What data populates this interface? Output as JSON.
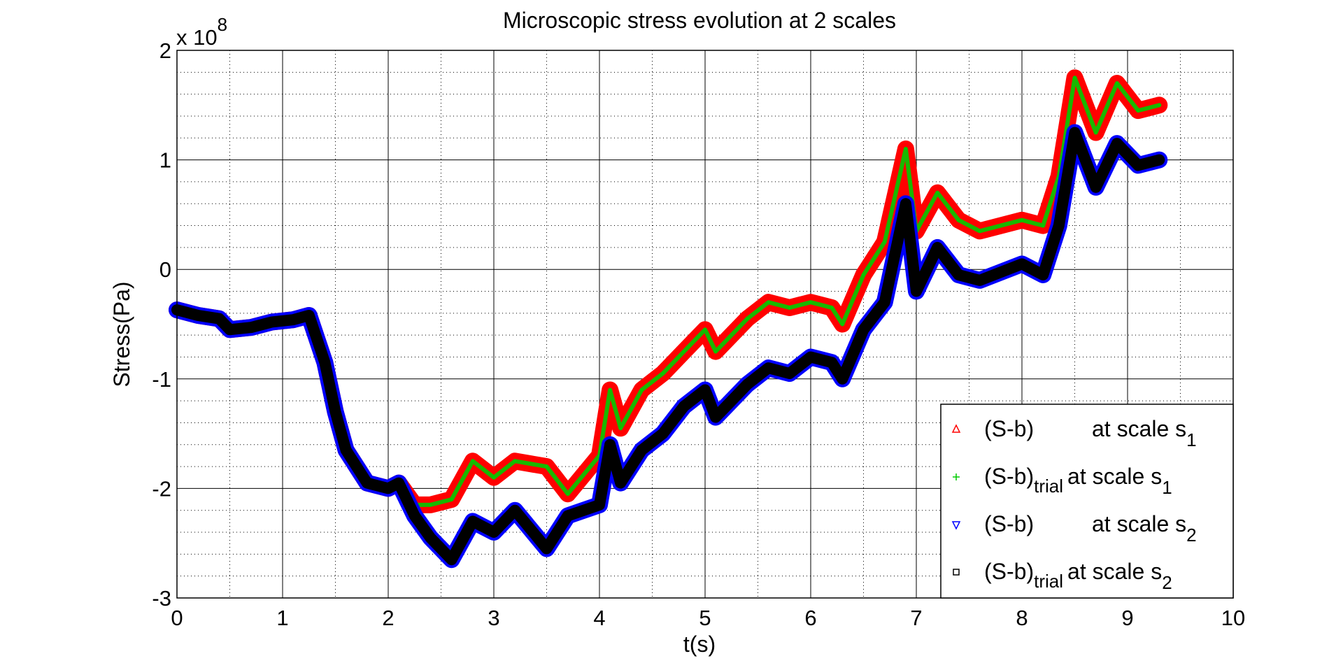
{
  "chart_data": {
    "type": "line",
    "title": "Microscopic stress evolution at 2 scales",
    "xlabel": "t(s)",
    "ylabel": "Stress(Pa)",
    "y_multiplier": "x 10",
    "y_multiplier_exponent": "8",
    "xlim": [
      0,
      10
    ],
    "ylim": [
      -3,
      2
    ],
    "x_ticks": [
      "0",
      "1",
      "2",
      "3",
      "4",
      "5",
      "6",
      "7",
      "8",
      "9",
      "10"
    ],
    "y_ticks": [
      "-3",
      "-2",
      "-1",
      "0",
      "1",
      "2"
    ],
    "grid": true,
    "minor_grid": true,
    "legend_position": "bottom-right",
    "series": [
      {
        "name": "(S-b) at scale s1",
        "legend": {
          "main": "(S-b)",
          "sub": "",
          "tail": "at scale s",
          "scale_sub": "1"
        },
        "color": "#ff0000",
        "marker": "triangle-up",
        "x": [
          0,
          0.2,
          0.4,
          0.5,
          0.7,
          0.9,
          1.1,
          1.25,
          1.4,
          1.5,
          1.6,
          1.8,
          2.0,
          2.1,
          2.25,
          2.4,
          2.6,
          2.8,
          3.0,
          3.2,
          3.5,
          3.7,
          4.0,
          4.1,
          4.2,
          4.4,
          4.6,
          4.8,
          5.0,
          5.1,
          5.4,
          5.6,
          5.8,
          6.0,
          6.2,
          6.3,
          6.5,
          6.7,
          6.9,
          7.0,
          7.2,
          7.4,
          7.6,
          8.0,
          8.2,
          8.35,
          8.5,
          8.7,
          8.9,
          9.1,
          9.3
        ],
        "y": [
          -0.37,
          -0.42,
          -0.45,
          -0.55,
          -0.53,
          -0.48,
          -0.46,
          -0.42,
          -0.85,
          -1.3,
          -1.65,
          -1.95,
          -2.0,
          -1.95,
          -2.15,
          -2.15,
          -2.1,
          -1.75,
          -1.9,
          -1.75,
          -1.8,
          -2.05,
          -1.7,
          -1.1,
          -1.45,
          -1.1,
          -0.95,
          -0.75,
          -0.55,
          -0.75,
          -0.45,
          -0.3,
          -0.35,
          -0.3,
          -0.35,
          -0.5,
          -0.05,
          0.25,
          1.1,
          0.35,
          0.7,
          0.45,
          0.35,
          0.45,
          0.4,
          0.85,
          1.75,
          1.25,
          1.7,
          1.45,
          1.5
        ]
      },
      {
        "name": "(S-b)trial at scale s1",
        "legend": {
          "main": "(S-b)",
          "sub": "trial",
          "tail": "at scale s",
          "scale_sub": "1"
        },
        "color": "#00cc00",
        "marker": "plus",
        "x": [
          0,
          0.2,
          0.4,
          0.5,
          0.7,
          0.9,
          1.1,
          1.25,
          1.4,
          1.5,
          1.6,
          1.8,
          2.0,
          2.1,
          2.25,
          2.4,
          2.6,
          2.8,
          3.0,
          3.2,
          3.5,
          3.7,
          4.0,
          4.1,
          4.2,
          4.4,
          4.6,
          4.8,
          5.0,
          5.1,
          5.4,
          5.6,
          5.8,
          6.0,
          6.2,
          6.3,
          6.5,
          6.7,
          6.9,
          7.0,
          7.2,
          7.4,
          7.6,
          8.0,
          8.2,
          8.35,
          8.5,
          8.7,
          8.9,
          9.1,
          9.3
        ],
        "y": [
          -0.37,
          -0.42,
          -0.45,
          -0.55,
          -0.53,
          -0.48,
          -0.46,
          -0.42,
          -0.85,
          -1.3,
          -1.65,
          -1.95,
          -2.0,
          -1.95,
          -2.15,
          -2.15,
          -2.1,
          -1.75,
          -1.9,
          -1.75,
          -1.8,
          -2.05,
          -1.7,
          -1.1,
          -1.45,
          -1.1,
          -0.95,
          -0.75,
          -0.55,
          -0.75,
          -0.45,
          -0.3,
          -0.35,
          -0.3,
          -0.35,
          -0.5,
          -0.05,
          0.25,
          1.1,
          0.35,
          0.7,
          0.45,
          0.35,
          0.45,
          0.4,
          0.85,
          1.75,
          1.25,
          1.7,
          1.45,
          1.5
        ]
      },
      {
        "name": "(S-b) at scale s2",
        "legend": {
          "main": "(S-b)",
          "sub": "",
          "tail": "at scale s",
          "scale_sub": "2"
        },
        "color": "#0000ff",
        "marker": "triangle-down",
        "x": [
          0,
          0.2,
          0.4,
          0.5,
          0.7,
          0.9,
          1.1,
          1.25,
          1.4,
          1.5,
          1.6,
          1.8,
          2.0,
          2.1,
          2.25,
          2.4,
          2.6,
          2.8,
          3.0,
          3.2,
          3.5,
          3.7,
          4.0,
          4.1,
          4.2,
          4.4,
          4.6,
          4.8,
          5.0,
          5.1,
          5.4,
          5.6,
          5.8,
          6.0,
          6.2,
          6.3,
          6.5,
          6.7,
          6.9,
          7.0,
          7.2,
          7.4,
          7.6,
          8.0,
          8.2,
          8.35,
          8.5,
          8.7,
          8.9,
          9.1,
          9.3
        ],
        "y": [
          -0.37,
          -0.42,
          -0.45,
          -0.55,
          -0.53,
          -0.48,
          -0.46,
          -0.42,
          -0.85,
          -1.3,
          -1.65,
          -1.95,
          -2.0,
          -1.95,
          -2.25,
          -2.45,
          -2.65,
          -2.3,
          -2.4,
          -2.2,
          -2.55,
          -2.25,
          -2.15,
          -1.6,
          -1.95,
          -1.65,
          -1.5,
          -1.25,
          -1.1,
          -1.35,
          -1.05,
          -0.9,
          -0.95,
          -0.8,
          -0.85,
          -1.0,
          -0.55,
          -0.3,
          0.6,
          -0.2,
          0.2,
          -0.05,
          -0.1,
          0.05,
          -0.05,
          0.4,
          1.25,
          0.75,
          1.15,
          0.95,
          1.0
        ]
      },
      {
        "name": "(S-b)trial at scale s2",
        "legend": {
          "main": "(S-b)",
          "sub": "trial",
          "tail": "at scale s",
          "scale_sub": "2"
        },
        "color": "#000000",
        "marker": "square",
        "x": [
          0,
          0.2,
          0.4,
          0.5,
          0.7,
          0.9,
          1.1,
          1.25,
          1.4,
          1.5,
          1.6,
          1.8,
          2.0,
          2.1,
          2.25,
          2.4,
          2.6,
          2.8,
          3.0,
          3.2,
          3.5,
          3.7,
          4.0,
          4.1,
          4.2,
          4.4,
          4.6,
          4.8,
          5.0,
          5.1,
          5.4,
          5.6,
          5.8,
          6.0,
          6.2,
          6.3,
          6.5,
          6.7,
          6.9,
          7.0,
          7.2,
          7.4,
          7.6,
          8.0,
          8.2,
          8.35,
          8.5,
          8.7,
          8.9,
          9.1,
          9.3
        ],
        "y": [
          -0.37,
          -0.42,
          -0.45,
          -0.55,
          -0.53,
          -0.48,
          -0.46,
          -0.42,
          -0.85,
          -1.3,
          -1.65,
          -1.95,
          -2.0,
          -1.95,
          -2.25,
          -2.45,
          -2.65,
          -2.3,
          -2.4,
          -2.2,
          -2.55,
          -2.25,
          -2.15,
          -1.6,
          -1.95,
          -1.65,
          -1.5,
          -1.25,
          -1.1,
          -1.35,
          -1.05,
          -0.9,
          -0.95,
          -0.8,
          -0.85,
          -1.0,
          -0.55,
          -0.3,
          0.6,
          -0.2,
          0.2,
          -0.05,
          -0.1,
          0.05,
          -0.05,
          0.4,
          1.25,
          0.75,
          1.15,
          0.95,
          1.0
        ]
      }
    ]
  }
}
